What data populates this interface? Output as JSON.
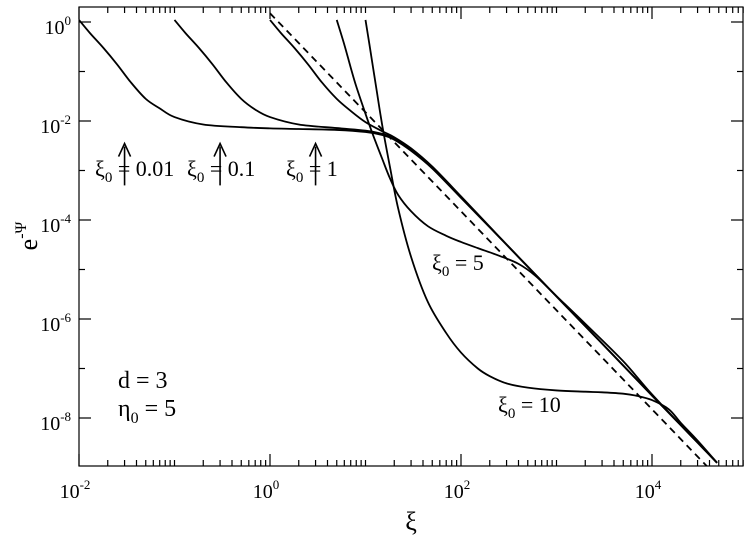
{
  "chart_data": {
    "type": "line",
    "title": "",
    "xlabel": "ξ",
    "ylabel": "e",
    "ylabel_sup": "-Ψ",
    "x_scale": "log",
    "y_scale": "log",
    "xlim": [
      0.01,
      80000
    ],
    "ylim": [
      3e-10,
      2
    ],
    "x_ticks": [
      {
        "value": 0.01,
        "base": "10",
        "exp": "-2"
      },
      {
        "value": 1,
        "base": "10",
        "exp": "0"
      },
      {
        "value": 100,
        "base": "10",
        "exp": "2"
      },
      {
        "value": 10000,
        "base": "10",
        "exp": "4"
      }
    ],
    "y_ticks": [
      {
        "value": 1,
        "base": "10",
        "exp": "0"
      },
      {
        "value": 0.01,
        "base": "10",
        "exp": "-2"
      },
      {
        "value": 0.0001,
        "base": "10",
        "exp": "-4"
      },
      {
        "value": 1e-06,
        "base": "10",
        "exp": "-6"
      },
      {
        "value": 1e-08,
        "base": "10",
        "exp": "-8"
      }
    ],
    "grid": false,
    "legend": "none",
    "series": [
      {
        "style": "solid",
        "x": [
          0.01,
          0.013,
          0.018,
          0.025,
          0.035,
          0.05,
          0.07,
          0.1,
          0.2,
          0.5,
          1,
          2,
          5,
          10,
          15,
          20,
          30,
          50,
          100,
          200,
          400,
          1000,
          3000,
          10000,
          30000,
          48000
        ],
        "y": [
          1.1,
          0.6,
          0.3,
          0.14,
          0.06,
          0.028,
          0.018,
          0.012,
          0.0085,
          0.0075,
          0.0071,
          0.0069,
          0.0066,
          0.006,
          0.0052,
          0.0042,
          0.0025,
          0.0011,
          0.00028,
          7.1e-05,
          1.78e-05,
          2.85e-06,
          3.2e-07,
          2.85e-08,
          3.2e-09,
          1.25e-09
        ]
      },
      {
        "style": "solid",
        "x": [
          0.1,
          0.13,
          0.18,
          0.25,
          0.35,
          0.5,
          0.7,
          1,
          2,
          5,
          10,
          15,
          20,
          30,
          50,
          100,
          200,
          400,
          1000,
          3000,
          10000,
          30000,
          48000
        ],
        "y": [
          1.1,
          0.6,
          0.3,
          0.14,
          0.06,
          0.028,
          0.017,
          0.012,
          0.0085,
          0.0072,
          0.0064,
          0.0055,
          0.0044,
          0.0026,
          0.00115,
          0.00029,
          7.2e-05,
          1.79e-05,
          2.86e-06,
          3.2e-07,
          2.85e-08,
          3.2e-09,
          1.25e-09
        ]
      },
      {
        "style": "solid",
        "x": [
          1,
          1.3,
          1.8,
          2.5,
          3.5,
          5,
          7,
          10,
          15,
          20,
          30,
          50,
          100,
          200,
          400,
          1000,
          3000,
          10000,
          30000,
          48000
        ],
        "y": [
          1.1,
          0.6,
          0.3,
          0.14,
          0.06,
          0.028,
          0.016,
          0.0095,
          0.0062,
          0.0047,
          0.0028,
          0.0012,
          0.0003,
          7.3e-05,
          1.79e-05,
          2.87e-06,
          3.2e-07,
          2.85e-08,
          3.2e-09,
          1.25e-09
        ]
      },
      {
        "style": "solid",
        "x": [
          5,
          6,
          7,
          8,
          10,
          12,
          15,
          18,
          22,
          30,
          45,
          70,
          100,
          150,
          250,
          400,
          600,
          1000,
          2000,
          5000,
          10000,
          30000,
          48000
        ],
        "y": [
          1.1,
          0.35,
          0.12,
          0.05,
          0.014,
          0.0052,
          0.0017,
          0.0007,
          0.00032,
          0.00015,
          7.5e-05,
          4.8e-05,
          3.6e-05,
          2.7e-05,
          1.9e-05,
          1.3e-05,
          7.5e-06,
          2.9e-06,
          8e-07,
          1.4e-07,
          3e-08,
          3.2e-09,
          1.25e-09
        ]
      },
      {
        "style": "solid",
        "x": [
          10,
          11,
          12,
          13,
          15,
          18,
          22,
          30,
          45,
          70,
          100,
          150,
          200,
          300,
          500,
          1000,
          2000,
          3000,
          5000,
          7000,
          10000,
          15000,
          20000,
          30000,
          48000
        ],
        "y": [
          1.1,
          0.35,
          0.12,
          0.045,
          0.008,
          0.0012,
          0.00017,
          1.8e-05,
          2.2e-06,
          5.2e-07,
          2.1e-07,
          1e-07,
          7e-08,
          5e-08,
          4.1e-08,
          3.6e-08,
          3.4e-08,
          3.3e-08,
          3.1e-08,
          2.8e-08,
          2.3e-08,
          1.5e-08,
          8e-09,
          3.5e-09,
          1.25e-09
        ]
      },
      {
        "style": "dashed",
        "x": [
          1,
          10,
          100,
          1000,
          10000,
          48000
        ],
        "y": [
          1.5,
          0.015,
          0.00015,
          1.5e-06,
          1.5e-08,
          6.5e-10
        ]
      }
    ],
    "annotations": [
      {
        "base": "ξ",
        "sub": "0",
        "rest": " = 0.01",
        "arrow_x": 0.03,
        "arrow_y_top": 0.0035,
        "arrow_y_bottom": 0.0005
      },
      {
        "base": "ξ",
        "sub": "0",
        "rest": " = 0.1",
        "arrow_x": 0.3,
        "arrow_y_top": 0.0035,
        "arrow_y_bottom": 0.0005
      },
      {
        "base": "ξ",
        "sub": "0",
        "rest": " = 1",
        "arrow_x": 3,
        "arrow_y_top": 0.0035,
        "arrow_y_bottom": 0.0005
      },
      {
        "base": "ξ",
        "sub": "0",
        "rest": " = 5"
      },
      {
        "base": "ξ",
        "sub": "0",
        "rest": " = 10"
      }
    ],
    "parameters": [
      {
        "base": "d",
        "sub": "",
        "rest": " = 3"
      },
      {
        "base": "η",
        "sub": "0",
        "rest": " = 5"
      }
    ]
  }
}
